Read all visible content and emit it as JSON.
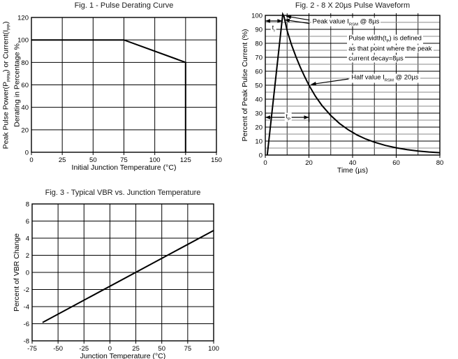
{
  "page": {
    "background": "#ffffff",
    "ink_color": "#000000",
    "minor_grid_color": "#8a8a8a"
  },
  "chart_data": [
    {
      "id": "fig1",
      "type": "line",
      "title": "Fig. 1 - Pulse Derating Curve",
      "xlabel": "Initial Junction Temperature (°C)",
      "ylabel_lines": [
        "Peak Pulse Power(P~PPM~) or Current(I~PP~)",
        "Derating in Percentage %"
      ],
      "xlim": [
        0,
        150
      ],
      "ylim": [
        0,
        120
      ],
      "xticks": [
        0,
        25,
        50,
        75,
        100,
        125,
        150
      ],
      "yticks": [
        0,
        20,
        40,
        60,
        80,
        100,
        120
      ],
      "xgrid_step": 25,
      "ygrid_step": 20,
      "grid": true,
      "legend": "none",
      "series": [
        {
          "name": "derating-curve",
          "points": [
            [
              0,
              100
            ],
            [
              75,
              100
            ],
            [
              125,
              80
            ],
            [
              125,
              0
            ]
          ]
        }
      ],
      "annotations": []
    },
    {
      "id": "fig2",
      "type": "line",
      "title": "Fig. 2 - 8 X 20µs Pulse Waveform",
      "xlabel": "Time (µs)",
      "ylabel": "Percent of Peak Pulse Current (%)",
      "xlim": [
        0,
        80
      ],
      "ylim": [
        0,
        100
      ],
      "xticks": [
        0,
        20,
        40,
        60,
        80
      ],
      "yticks": [
        0,
        10,
        20,
        30,
        40,
        50,
        60,
        70,
        80,
        90,
        100
      ],
      "xgrid_step": 10,
      "ygrid_step": 5,
      "yminor_color": "#8a8a8a",
      "xminor_color": "#2a2a2a",
      "top_ticks": true,
      "grid": true,
      "legend": "none",
      "key_points": {
        "peak_percent": 100,
        "peak_time_us": 8,
        "half_value_time_us": 20
      },
      "series": [
        {
          "name": "pulse-waveform",
          "points": [
            [
              0.9,
              0
            ],
            [
              8,
              100.8
            ],
            [
              8.6,
              99
            ],
            [
              10,
              89
            ],
            [
              12,
              79
            ],
            [
              14,
              70.5
            ],
            [
              16,
              63
            ],
            [
              18,
              56.2
            ],
            [
              20,
              50
            ],
            [
              23,
              42
            ],
            [
              26,
              35.4
            ],
            [
              30,
              28.3
            ],
            [
              34,
              22.6
            ],
            [
              38,
              18.1
            ],
            [
              42,
              14.4
            ],
            [
              46,
              11.5
            ],
            [
              50,
              9.2
            ],
            [
              55,
              6.9
            ],
            [
              60,
              5.2
            ],
            [
              65,
              3.9
            ],
            [
              70,
              2.9
            ],
            [
              75,
              2.2
            ],
            [
              80,
              1.7
            ]
          ]
        }
      ],
      "annotations": [
        {
          "type": "darrow",
          "x1": 0,
          "y1": 96,
          "x2": 7.8,
          "y2": 96
        },
        {
          "type": "label",
          "x": 3.8,
          "y": 90.5,
          "text": "t~r~",
          "anchor": "middle",
          "bg": true
        },
        {
          "type": "arrow",
          "x1": 20.3,
          "y1": 96.6,
          "x2": 9.6,
          "y2": 99.4
        },
        {
          "type": "arrow",
          "x1": 20.3,
          "y1": 94.2,
          "x2": 8.9,
          "y2": 96.8
        },
        {
          "type": "label",
          "x": 21,
          "y": 95.2,
          "text": "Peak value I~RSM~ @ 8µs",
          "anchor": "start",
          "bg": true
        },
        {
          "type": "label",
          "x": 37.5,
          "y": 83,
          "text": "Pulse width(t~P~) is defined",
          "anchor": "start",
          "bg": true
        },
        {
          "type": "label",
          "x": 37.5,
          "y": 76,
          "text": "as that point where the peak",
          "anchor": "start",
          "bg": true
        },
        {
          "type": "label",
          "x": 37.5,
          "y": 69,
          "text": "current decay=8µs",
          "anchor": "start",
          "bg": true
        },
        {
          "type": "arrow",
          "x1": 38.2,
          "y1": 54.5,
          "x2": 21,
          "y2": 50.6
        },
        {
          "type": "label",
          "x": 38.8,
          "y": 55,
          "text": "Half value I~RSM~ @ 20µs",
          "anchor": "start",
          "bg": true
        },
        {
          "type": "darrow",
          "x1": 0,
          "y1": 27,
          "x2": 20,
          "y2": 27
        },
        {
          "type": "seg",
          "x1": 20,
          "y1": 23.5,
          "x2": 20,
          "y2": 30.5
        },
        {
          "type": "label",
          "x": 10.5,
          "y": 27,
          "text": "t~P~",
          "anchor": "middle",
          "bg": true
        }
      ]
    },
    {
      "id": "fig3",
      "type": "line",
      "title": "Fig. 3 - Typical VBR vs. Junction Temperature",
      "xlabel": "Junction Temperature (°C)",
      "ylabel": "Percent of VBR Change",
      "xlim": [
        -75,
        100
      ],
      "ylim": [
        -8,
        8
      ],
      "xticks": [
        -75,
        -50,
        -25,
        0,
        25,
        50,
        75,
        100
      ],
      "yticks": [
        -8,
        -6,
        -4,
        -2,
        0,
        2,
        4,
        6,
        8
      ],
      "xgrid_step": 25,
      "ygrid_step": 2,
      "grid": true,
      "legend": "none",
      "series": [
        {
          "name": "vbr-change-line",
          "points": [
            [
              -65,
              -5.85
            ],
            [
              100,
              4.9
            ]
          ]
        }
      ],
      "annotations": []
    }
  ]
}
